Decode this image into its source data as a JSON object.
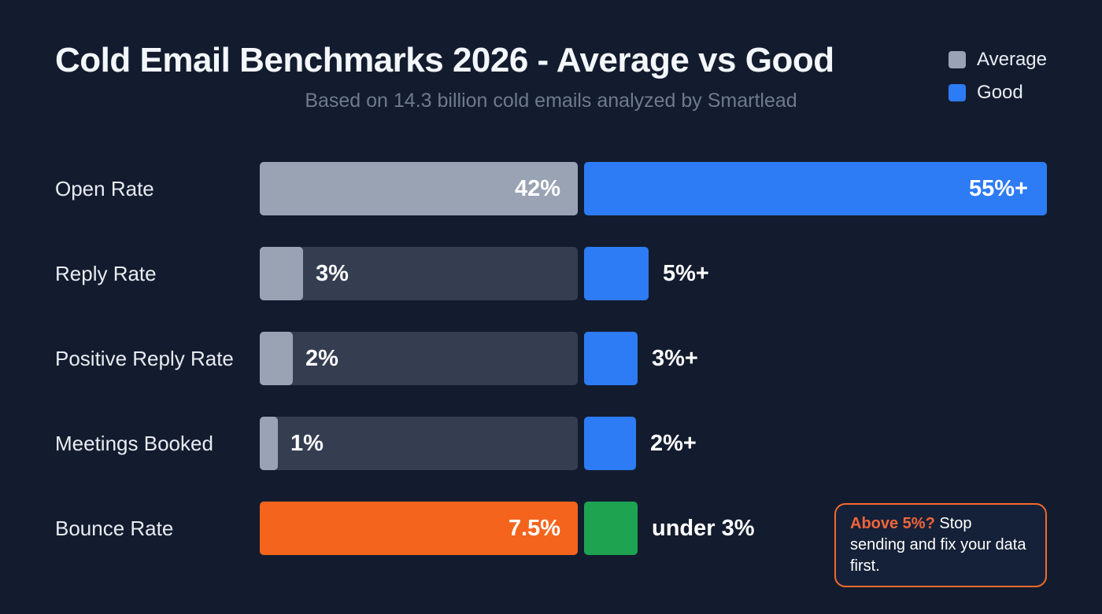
{
  "header": {
    "title": "Cold Email Benchmarks 2026 - Average vs Good",
    "subtitle": "Based on 14.3 billion cold emails analyzed by Smartlead"
  },
  "legend": {
    "average_label": "Average",
    "good_label": "Good",
    "average_color": "#99a3b4",
    "good_color": "#2d7bf5"
  },
  "chart_data": {
    "type": "bar",
    "title": "Cold Email Benchmarks 2026 - Average vs Good",
    "subtitle": "Based on 14.3 billion cold emails analyzed by Smartlead",
    "categories": [
      "Open Rate",
      "Reply Rate",
      "Positive Reply Rate",
      "Meetings Booked",
      "Bounce Rate"
    ],
    "series": [
      {
        "name": "Average",
        "labels": [
          "42%",
          "3%",
          "2%",
          "1%",
          "7.5%"
        ],
        "values": [
          42,
          3,
          2,
          1,
          7.5
        ]
      },
      {
        "name": "Good",
        "labels": [
          "55%+",
          "5%+",
          "3%+",
          "2%+",
          "under 3%"
        ],
        "values": [
          55,
          5,
          3,
          2,
          3
        ]
      }
    ],
    "rows": [
      {
        "label": "Open Rate",
        "average": "42%",
        "good": "55%+"
      },
      {
        "label": "Reply Rate",
        "average": "3%",
        "good": "5%+"
      },
      {
        "label": "Positive Reply Rate",
        "average": "2%",
        "good": "3%+"
      },
      {
        "label": "Meetings Booked",
        "average": "1%",
        "good": "2%+"
      },
      {
        "label": "Bounce Rate",
        "average": "7.5%",
        "good": "under 3%"
      }
    ],
    "colors": {
      "background": "#131c2e",
      "track": "#353d51",
      "average": "#99a3b4",
      "good": "#2d7bf5",
      "bounce_average": "#f4641d",
      "bounce_good": "#1ea351",
      "note_border": "#f26a2e"
    },
    "legend_position": "top-right",
    "grid": false
  },
  "note": {
    "highlight": "Above 5%?",
    "text": "Stop sending and fix your data first."
  }
}
